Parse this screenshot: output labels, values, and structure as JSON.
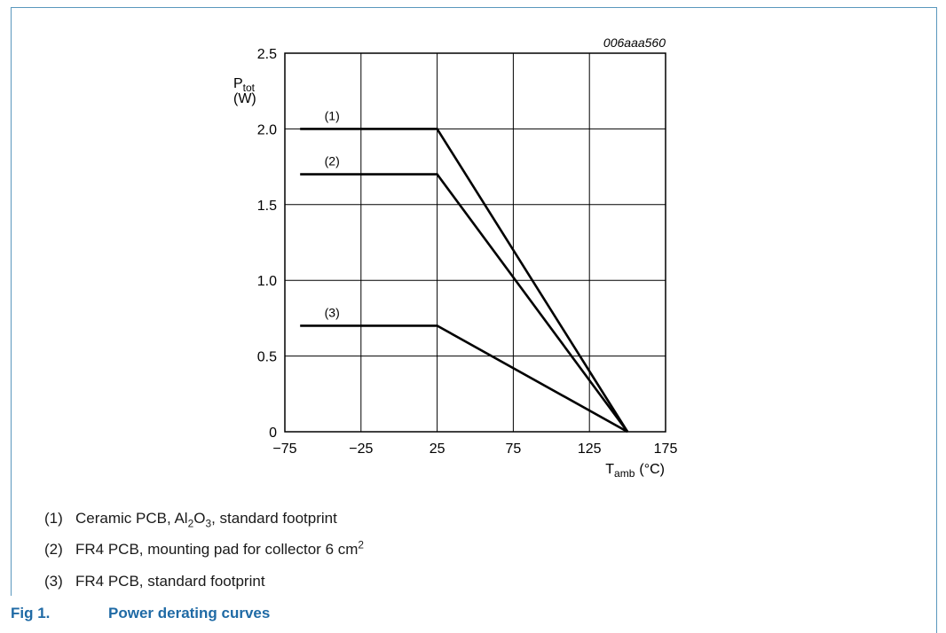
{
  "figure": {
    "code": "006aaa560",
    "caption_number": "Fig 1.",
    "caption_title": "Power derating curves"
  },
  "colors": {
    "frame": "#5a98bd",
    "caption": "#1f6aa5",
    "curve": "#000000",
    "grid": "#000000"
  },
  "legend": [
    {
      "marker": "(1)",
      "parts": [
        "Ceramic PCB, Al",
        "2",
        "O",
        "3",
        ", standard footprint"
      ]
    },
    {
      "marker": "(2)",
      "parts": [
        "FR4 PCB, mounting pad for collector 6 cm",
        "2"
      ]
    },
    {
      "marker": "(3)",
      "parts": [
        "FR4 PCB, standard footprint"
      ]
    }
  ],
  "chart_data": {
    "type": "line",
    "xlabel": {
      "symbol": "T",
      "subscript": "amb",
      "unit": "(°C)"
    },
    "ylabel": {
      "symbol": "P",
      "subscript": "tot",
      "unit": "(W)"
    },
    "xlim": [
      -75,
      175
    ],
    "ylim": [
      0,
      2.5
    ],
    "xticks": [
      -75,
      -25,
      25,
      75,
      125,
      175
    ],
    "xtick_labels": [
      "−75",
      "−25",
      "25",
      "75",
      "125",
      "175"
    ],
    "yticks": [
      0,
      0.5,
      1.0,
      1.5,
      2.0,
      2.5
    ],
    "ytick_labels": [
      "0",
      "0.5",
      "1.0",
      "1.5",
      "2.0",
      "2.5"
    ],
    "grid": true,
    "series": [
      {
        "name": "(1)",
        "x": [
          -65,
          25,
          150
        ],
        "y": [
          2.0,
          2.0,
          0
        ]
      },
      {
        "name": "(2)",
        "x": [
          -65,
          25,
          150
        ],
        "y": [
          1.7,
          1.7,
          0
        ]
      },
      {
        "name": "(3)",
        "x": [
          -65,
          25,
          150
        ],
        "y": [
          0.7,
          0.7,
          0
        ]
      }
    ]
  }
}
